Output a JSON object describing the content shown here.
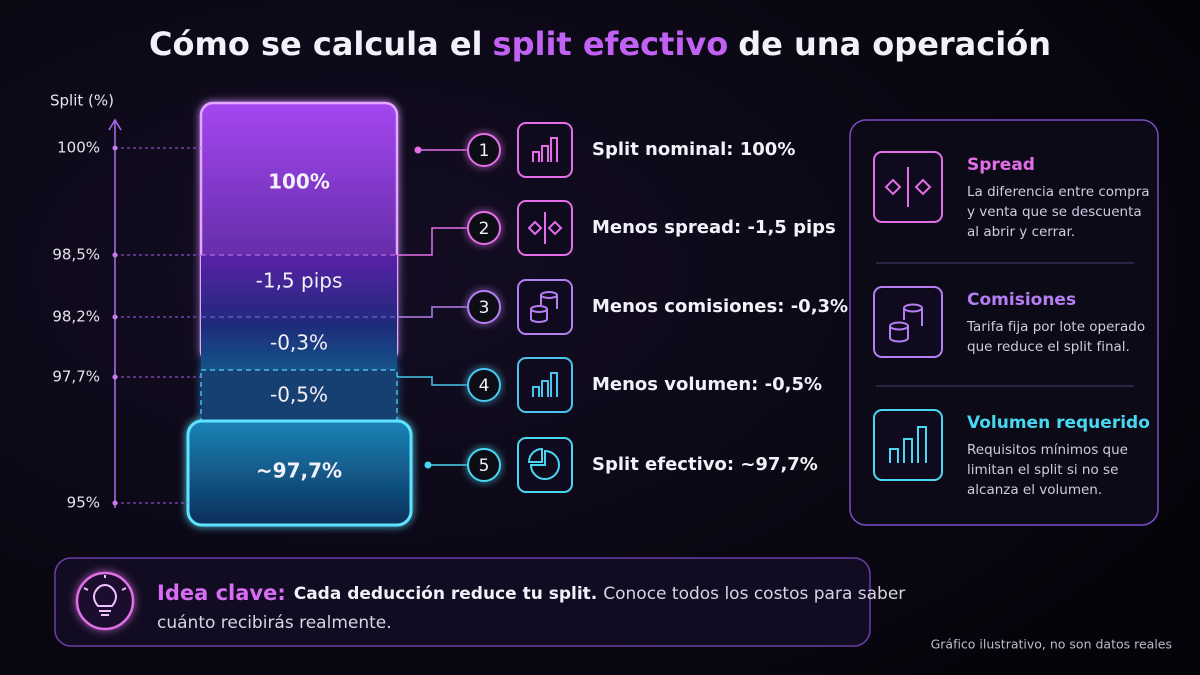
{
  "title": [
    "Cómo se calcula el",
    "split efectivo",
    "de una operación"
  ],
  "axis": {
    "label": "Split (%)",
    "ticks": [
      "100%",
      "98,5%",
      "98,2%",
      "97,7%",
      "95%"
    ]
  },
  "bar": {
    "segments": [
      "100%",
      "-1,5 pips",
      "-0,3%",
      "-0,5%",
      "~97,7%"
    ]
  },
  "steps": [
    {
      "number": "1",
      "text": "Split nominal: 100%"
    },
    {
      "number": "2",
      "text": "Menos spread: -1,5 pips"
    },
    {
      "number": "3",
      "text": "Menos comisiones: -0,3%"
    },
    {
      "number": "4",
      "text": "Menos volumen: -0,5%"
    },
    {
      "number": "5",
      "text": "Split efectivo: ~97,7%"
    }
  ],
  "panel": [
    {
      "title": "Spread",
      "lines": [
        "La diferencia entre compra",
        "y venta que se descuenta",
        "al abrir y cerrar."
      ]
    },
    {
      "title": "Comisiones",
      "lines": [
        "Tarifa fija por lote operado",
        "que reduce el split final."
      ]
    },
    {
      "title": "Volumen requerido",
      "lines": [
        "Requisitos mínimos que",
        "limitan el split si no se",
        "alcanza el volumen."
      ]
    }
  ],
  "key_idea": {
    "label": "Idea clave:",
    "bold": "Cada deducción reduce tu split.",
    "lines": [
      "Conoce todos los costos para saber",
      "cuánto recibirás realmente."
    ]
  },
  "footnote": "Gráfico ilustrativo, no son datos reales"
}
